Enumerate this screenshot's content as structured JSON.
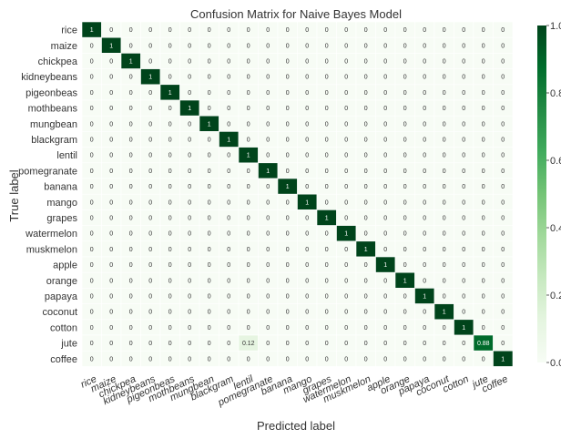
{
  "chart_data": {
    "type": "heatmap",
    "title": "Confusion Matrix for Naive Bayes Model",
    "xlabel": "Predicted label",
    "ylabel": "True label",
    "x_categories": [
      "rice",
      "maize",
      "chickpea",
      "kidneybeans",
      "pigeonbeas",
      "mothbeans",
      "mungbean",
      "blackgram",
      "lentil",
      "pomegranate",
      "banana",
      "mango",
      "grapes",
      "watermelon",
      "muskmelon",
      "apple",
      "orange",
      "papaya",
      "coconut",
      "cotton",
      "jute",
      "coffee"
    ],
    "y_categories": [
      "rice",
      "maize",
      "chickpea",
      "kidneybeans",
      "pigeonbeas",
      "mothbeans",
      "mungbean",
      "blackgram",
      "lentil",
      "pomegranate",
      "banana",
      "mango",
      "grapes",
      "watermelon",
      "muskmelon",
      "apple",
      "orange",
      "papaya",
      "coconut",
      "cotton",
      "jute",
      "coffee"
    ],
    "values": [
      [
        1,
        0,
        0,
        0,
        0,
        0,
        0,
        0,
        0,
        0,
        0,
        0,
        0,
        0,
        0,
        0,
        0,
        0,
        0,
        0,
        0,
        0
      ],
      [
        0,
        1,
        0,
        0,
        0,
        0,
        0,
        0,
        0,
        0,
        0,
        0,
        0,
        0,
        0,
        0,
        0,
        0,
        0,
        0,
        0,
        0
      ],
      [
        0,
        0,
        1,
        0,
        0,
        0,
        0,
        0,
        0,
        0,
        0,
        0,
        0,
        0,
        0,
        0,
        0,
        0,
        0,
        0,
        0,
        0
      ],
      [
        0,
        0,
        0,
        1,
        0,
        0,
        0,
        0,
        0,
        0,
        0,
        0,
        0,
        0,
        0,
        0,
        0,
        0,
        0,
        0,
        0,
        0
      ],
      [
        0,
        0,
        0,
        0,
        1,
        0,
        0,
        0,
        0,
        0,
        0,
        0,
        0,
        0,
        0,
        0,
        0,
        0,
        0,
        0,
        0,
        0
      ],
      [
        0,
        0,
        0,
        0,
        0,
        1,
        0,
        0,
        0,
        0,
        0,
        0,
        0,
        0,
        0,
        0,
        0,
        0,
        0,
        0,
        0,
        0
      ],
      [
        0,
        0,
        0,
        0,
        0,
        0,
        1,
        0,
        0,
        0,
        0,
        0,
        0,
        0,
        0,
        0,
        0,
        0,
        0,
        0,
        0,
        0
      ],
      [
        0,
        0,
        0,
        0,
        0,
        0,
        0,
        1,
        0,
        0,
        0,
        0,
        0,
        0,
        0,
        0,
        0,
        0,
        0,
        0,
        0,
        0
      ],
      [
        0,
        0,
        0,
        0,
        0,
        0,
        0,
        0,
        1,
        0,
        0,
        0,
        0,
        0,
        0,
        0,
        0,
        0,
        0,
        0,
        0,
        0
      ],
      [
        0,
        0,
        0,
        0,
        0,
        0,
        0,
        0,
        0,
        1,
        0,
        0,
        0,
        0,
        0,
        0,
        0,
        0,
        0,
        0,
        0,
        0
      ],
      [
        0,
        0,
        0,
        0,
        0,
        0,
        0,
        0,
        0,
        0,
        1,
        0,
        0,
        0,
        0,
        0,
        0,
        0,
        0,
        0,
        0,
        0
      ],
      [
        0,
        0,
        0,
        0,
        0,
        0,
        0,
        0,
        0,
        0,
        0,
        1,
        0,
        0,
        0,
        0,
        0,
        0,
        0,
        0,
        0,
        0
      ],
      [
        0,
        0,
        0,
        0,
        0,
        0,
        0,
        0,
        0,
        0,
        0,
        0,
        1,
        0,
        0,
        0,
        0,
        0,
        0,
        0,
        0,
        0
      ],
      [
        0,
        0,
        0,
        0,
        0,
        0,
        0,
        0,
        0,
        0,
        0,
        0,
        0,
        1,
        0,
        0,
        0,
        0,
        0,
        0,
        0,
        0
      ],
      [
        0,
        0,
        0,
        0,
        0,
        0,
        0,
        0,
        0,
        0,
        0,
        0,
        0,
        0,
        1,
        0,
        0,
        0,
        0,
        0,
        0,
        0
      ],
      [
        0,
        0,
        0,
        0,
        0,
        0,
        0,
        0,
        0,
        0,
        0,
        0,
        0,
        0,
        0,
        1,
        0,
        0,
        0,
        0,
        0,
        0
      ],
      [
        0,
        0,
        0,
        0,
        0,
        0,
        0,
        0,
        0,
        0,
        0,
        0,
        0,
        0,
        0,
        0,
        1,
        0,
        0,
        0,
        0,
        0
      ],
      [
        0,
        0,
        0,
        0,
        0,
        0,
        0,
        0,
        0,
        0,
        0,
        0,
        0,
        0,
        0,
        0,
        0,
        1,
        0,
        0,
        0,
        0
      ],
      [
        0,
        0,
        0,
        0,
        0,
        0,
        0,
        0,
        0,
        0,
        0,
        0,
        0,
        0,
        0,
        0,
        0,
        0,
        1,
        0,
        0,
        0
      ],
      [
        0,
        0,
        0,
        0,
        0,
        0,
        0,
        0,
        0,
        0,
        0,
        0,
        0,
        0,
        0,
        0,
        0,
        0,
        0,
        1,
        0,
        0
      ],
      [
        0,
        0,
        0,
        0,
        0,
        0,
        0,
        0,
        0.12,
        0,
        0,
        0,
        0,
        0,
        0,
        0,
        0,
        0,
        0,
        0,
        0.88,
        0
      ],
      [
        0,
        0,
        0,
        0,
        0,
        0,
        0,
        0,
        0,
        0,
        0,
        0,
        0,
        0,
        0,
        0,
        0,
        0,
        0,
        0,
        0,
        1
      ]
    ],
    "value_range": [
      0,
      1
    ],
    "colorbar_ticks": [
      "1.0",
      "0.8",
      "0.6",
      "0.4",
      "0.2",
      "0.0"
    ],
    "colormap": "Greens",
    "color_low": "#f7fcf5",
    "color_high": "#00441b",
    "grid": false
  }
}
